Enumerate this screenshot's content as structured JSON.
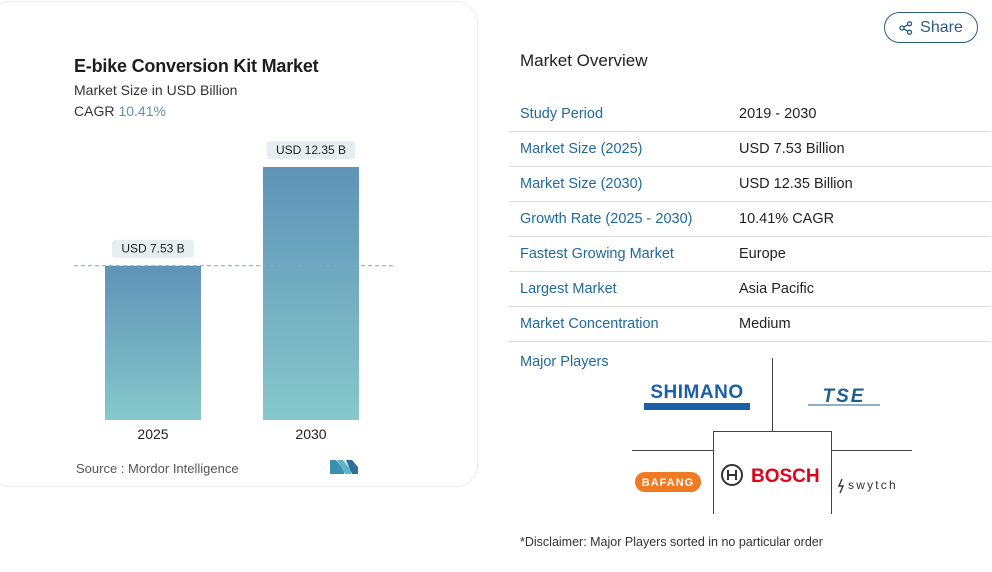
{
  "chart": {
    "title": "E-bike Conversion Kit Market",
    "subtitle": "Market Size in USD Billion",
    "cagr_label": "CAGR",
    "cagr_value": "10.41%",
    "source": "Source :  Mordor Intelligence"
  },
  "chart_data": {
    "type": "bar",
    "title": "E-bike Conversion Kit Market",
    "subtitle": "Market Size in USD Billion",
    "categories": [
      "2025",
      "2030"
    ],
    "values": [
      7.53,
      12.35
    ],
    "data_labels": [
      "USD 7.53 B",
      "USD 12.35 B"
    ],
    "ylabel": "",
    "xlabel": "",
    "ylim": [
      0,
      12.35
    ],
    "grid": false,
    "colors": {
      "bar_top": "#5f93b8",
      "bar_bottom": "#86c8ca",
      "reference_line": "#7fa9c0",
      "label_bg": "#e6eef1"
    }
  },
  "share": {
    "label": "Share",
    "icon": "share-icon"
  },
  "overview": {
    "title": "Market Overview",
    "rows": [
      {
        "label": "Study Period",
        "value": "2019 - 2030"
      },
      {
        "label": "Market Size (2025)",
        "value": "USD 7.53 Billion"
      },
      {
        "label": "Market Size (2030)",
        "value": "USD 12.35 Billion"
      },
      {
        "label": "Growth Rate (2025 - 2030)",
        "value": "10.41% CAGR"
      },
      {
        "label": "Fastest Growing Market",
        "value": "Europe"
      },
      {
        "label": "Largest Market",
        "value": "Asia Pacific"
      },
      {
        "label": "Market Concentration",
        "value": "Medium"
      }
    ],
    "players_label": "Major Players",
    "players": [
      "SHIMANO",
      "TSE",
      "BAFANG",
      "BOSCH",
      "swytch"
    ],
    "disclaimer": "*Disclaimer: Major Players sorted in no particular order"
  },
  "colors": {
    "accent": "#1f6a9b",
    "share_border": "#2b5d7f",
    "shimano": "#1b5fa8",
    "bosch": "#e2001a",
    "bafang": "#f07a22"
  }
}
